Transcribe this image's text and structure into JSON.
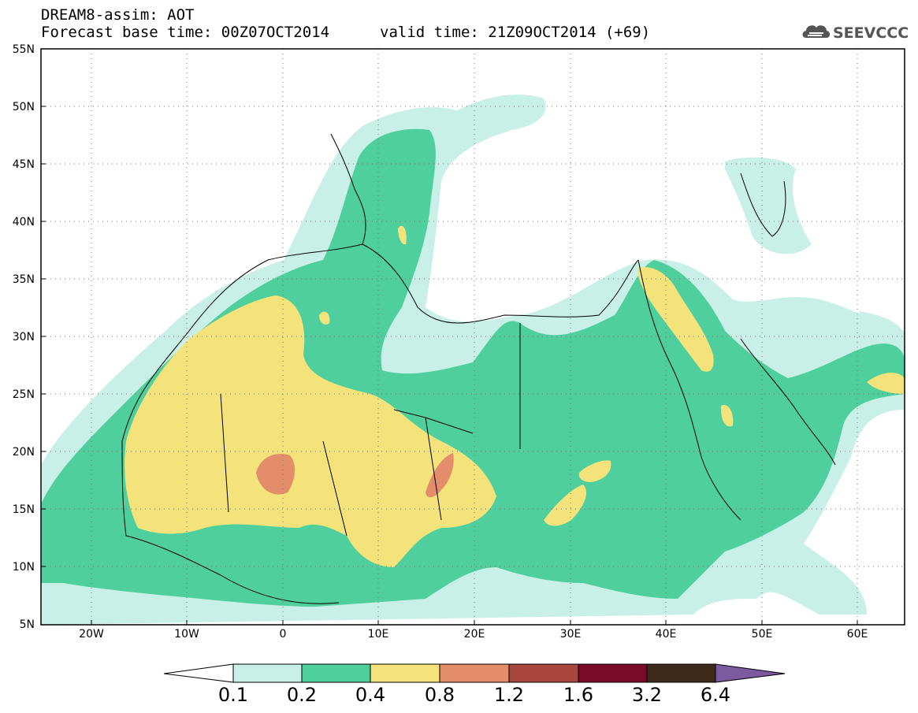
{
  "header": {
    "title": "DREAM8-assim: AOT",
    "base_time": "Forecast base time: 00Z07OCT2014",
    "valid_time": "valid time: 21Z09OCT2014 (+69)"
  },
  "logo": {
    "text": "SEEVCCC",
    "icon": "cloud-icon"
  },
  "map": {
    "lat_labels": [
      "55N",
      "50N",
      "45N",
      "40N",
      "35N",
      "30N",
      "25N",
      "20N",
      "15N",
      "10N",
      "5N"
    ],
    "lon_labels": [
      "20W",
      "10W",
      "0",
      "10E",
      "20E",
      "30E",
      "40E",
      "50E",
      "60E"
    ],
    "grid": true,
    "extent": {
      "lon": [
        -25,
        65
      ],
      "lat": [
        5,
        55
      ]
    }
  },
  "colorbar": {
    "labels": [
      "0.1",
      "0.2",
      "0.4",
      "0.8",
      "1.2",
      "1.6",
      "3.2",
      "6.4"
    ],
    "colors": [
      "#ffffff",
      "#c9f0e6",
      "#4ecf9d",
      "#f3e37a",
      "#e48d6b",
      "#a9473e",
      "#7a0a2a",
      "#3e2a1a",
      "#7d5aa0"
    ]
  }
}
